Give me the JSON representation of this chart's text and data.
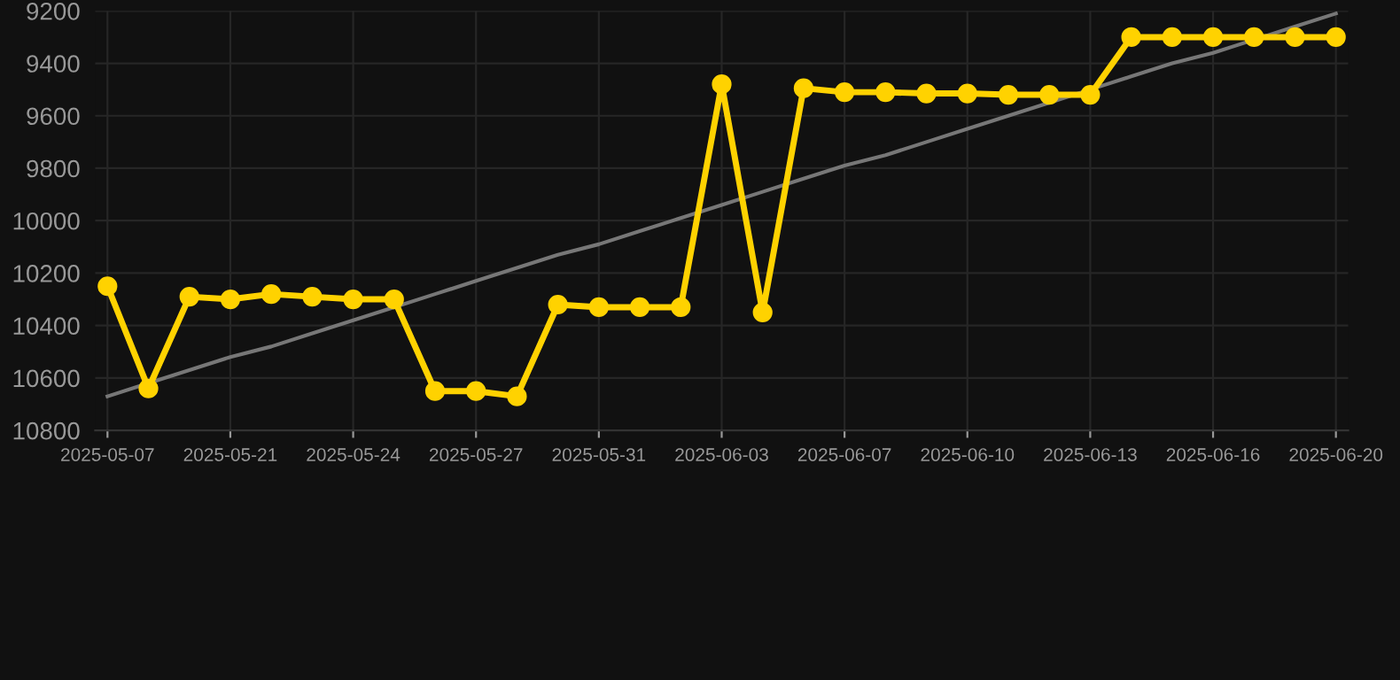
{
  "chart_data": {
    "type": "line",
    "categories": [
      "2025-05-07",
      null,
      null,
      "2025-05-21",
      null,
      null,
      "2025-05-24",
      null,
      null,
      "2025-05-27",
      null,
      null,
      "2025-05-31",
      null,
      null,
      "2025-06-03",
      null,
      null,
      "2025-06-07",
      null,
      null,
      "2025-06-10",
      null,
      null,
      "2025-06-13",
      null,
      null,
      "2025-06-16",
      null,
      null,
      "2025-06-20"
    ],
    "series": [
      {
        "color": "#ffd200",
        "marker": "circle",
        "values": [
          10250,
          10640,
          10290,
          10300,
          10280,
          10290,
          10300,
          10300,
          10650,
          10650,
          10670,
          10320,
          10330,
          10330,
          10330,
          9480,
          10350,
          9495,
          9510,
          9510,
          9515,
          9515,
          9520,
          9520,
          9520,
          9300,
          9300,
          9300,
          9300,
          9300,
          9300
        ]
      },
      {
        "type": "line",
        "color": "#777777",
        "marker": "none",
        "values": [
          10670,
          10620,
          10570,
          10520,
          10480,
          10430,
          10380,
          10330,
          10280,
          10230,
          10180,
          10130,
          10090,
          10040,
          9990,
          9940,
          9890,
          9840,
          9790,
          9750,
          9700,
          9650,
          9600,
          9550,
          9500,
          9450,
          9400,
          9360,
          9310,
          9260,
          9210
        ]
      }
    ],
    "ylim": [
      10800,
      9200
    ],
    "yticks": [
      9200,
      9400,
      9600,
      9800,
      10000,
      10200,
      10400,
      10600,
      10800
    ],
    "grid": true
  }
}
